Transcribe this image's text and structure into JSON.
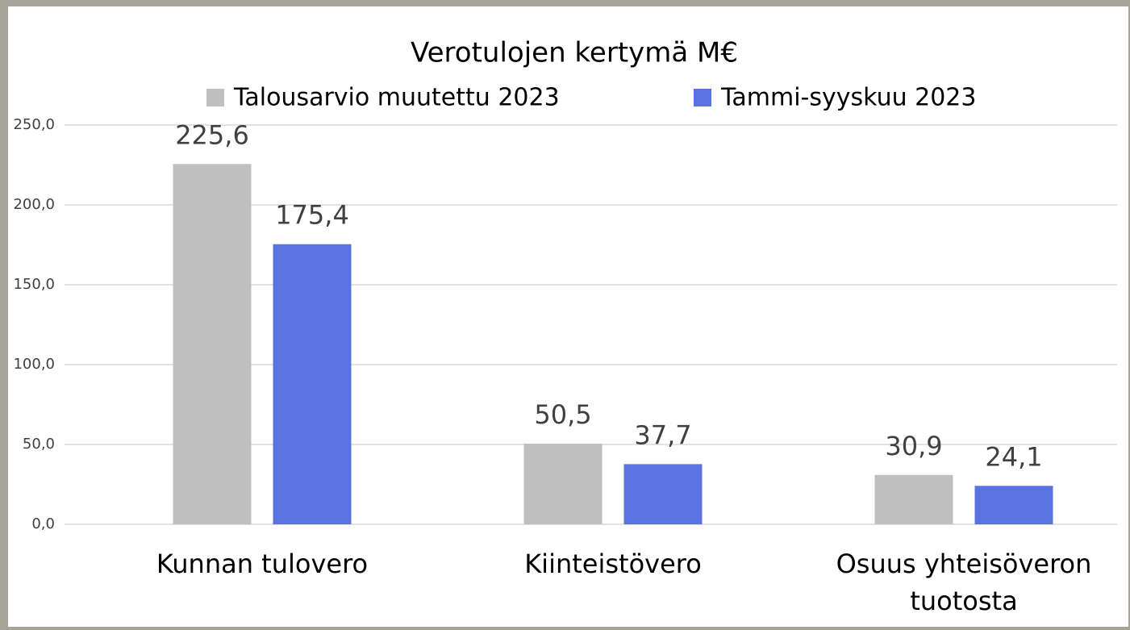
{
  "chart_data": {
    "type": "bar",
    "title": "Verotulojen kertymä M€",
    "categories": [
      "Kunnan tulovero",
      "Kiinteistövero",
      "Osuus yhteisöveron tuotosta"
    ],
    "series": [
      {
        "name": "Talousarvio muutettu 2023",
        "color": "#bfbfbf",
        "values": [
          225.6,
          50.5,
          30.9
        ],
        "value_labels": [
          "225,6",
          "50,5",
          "30,9"
        ]
      },
      {
        "name": "Tammi-syyskuu 2023",
        "color": "#5b73e0",
        "values": [
          175.4,
          37.7,
          24.1
        ],
        "value_labels": [
          "175,4",
          "37,7",
          "24,1"
        ]
      }
    ],
    "ylim": [
      0,
      250
    ],
    "yticks": [
      {
        "value": 0,
        "label": "0,0"
      },
      {
        "value": 50,
        "label": "50,0"
      },
      {
        "value": 100,
        "label": "100,0"
      },
      {
        "value": 150,
        "label": "150,0"
      },
      {
        "value": 200,
        "label": "200,0"
      },
      {
        "value": 250,
        "label": "250,0"
      }
    ],
    "grid": true,
    "legend": "top"
  }
}
